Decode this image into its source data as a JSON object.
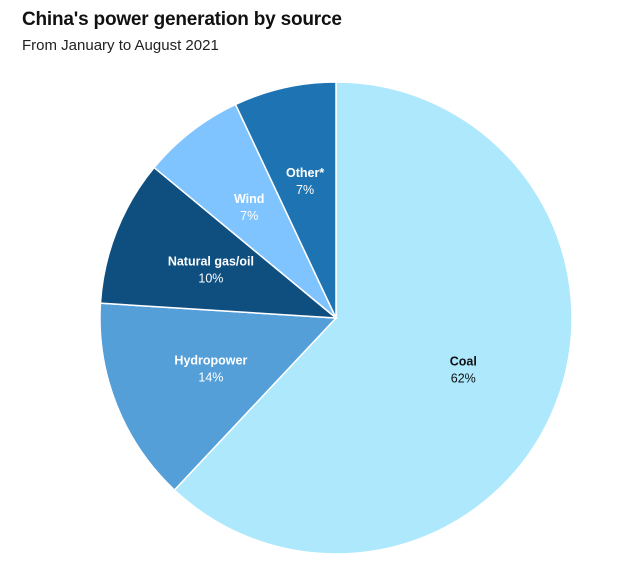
{
  "header": {
    "title": "China's power generation by source",
    "subtitle": "From January to August 2021"
  },
  "chart_data": {
    "type": "pie",
    "title": "China's power generation by source",
    "subtitle": "From January to August 2021",
    "start_angle_deg": 0,
    "direction": "clockwise",
    "slices": [
      {
        "label": "Coal",
        "value": 62,
        "display": "62%",
        "color": "#ADE8FD",
        "text_color": "#111111"
      },
      {
        "label": "Hydropower",
        "value": 14,
        "display": "14%",
        "color": "#559FD9",
        "text_color": "#ffffff"
      },
      {
        "label": "Natural gas/oil",
        "value": 10,
        "display": "10%",
        "color": "#0F4F80",
        "text_color": "#ffffff"
      },
      {
        "label": "Wind",
        "value": 7,
        "display": "7%",
        "color": "#80C4FF",
        "text_color": "#ffffff"
      },
      {
        "label": "Other*",
        "value": 7,
        "display": "7%",
        "color": "#1E74B3",
        "text_color": "#ffffff"
      }
    ]
  }
}
